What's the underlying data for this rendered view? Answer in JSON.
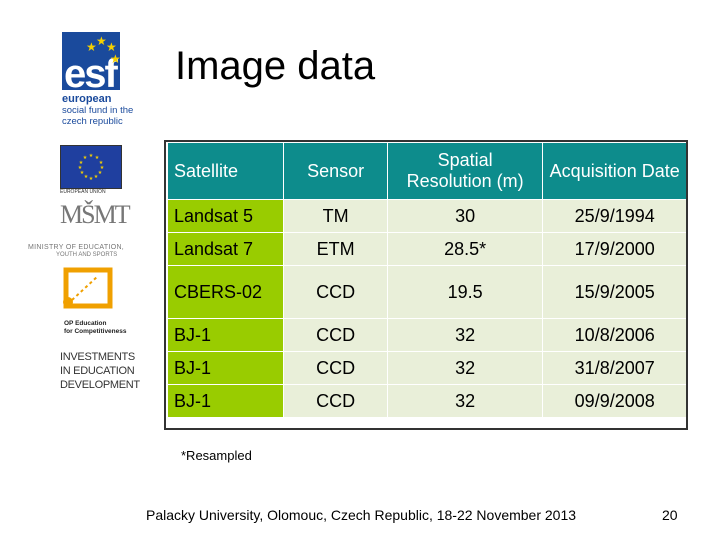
{
  "sidebar": {
    "esf": {
      "letters": "esf",
      "line1": "european",
      "line2": "social fund in the",
      "line3": "czech republic"
    },
    "eu": {
      "caption": "EUROPEAN UNION"
    },
    "msmt": {
      "mono": "MŠMT",
      "line1": "MINISTRY OF EDUCATION,",
      "line2": "YOUTH AND SPORTS"
    },
    "op": {
      "line1": "OP Education",
      "line2": "for Competitiveness"
    },
    "invest": {
      "line1": "INVESTMENTS",
      "line2": "IN EDUCATION",
      "line3": "DEVELOPMENT"
    }
  },
  "slide": {
    "title": "Image data",
    "note": "*Resampled",
    "footer": "Palacky University, Olomouc, Czech Republic, 18-22 November 2013",
    "page_number": "20"
  },
  "table": {
    "headers": [
      "Satellite",
      "Sensor",
      "Spatial Resolution (m)",
      "Acquisition Date"
    ],
    "rows": [
      [
        "Landsat 5",
        "TM",
        "30",
        "25/9/1994"
      ],
      [
        "Landsat 7",
        "ETM",
        "28.5*",
        "17/9/2000"
      ],
      [
        "CBERS-02",
        "CCD",
        "19.5",
        "15/9/2005"
      ],
      [
        "BJ-1",
        "CCD",
        "32",
        "10/8/2006"
      ],
      [
        "BJ-1",
        "CCD",
        "32",
        "31/8/2007"
      ],
      [
        "BJ-1",
        "CCD",
        "32",
        "09/9/2008"
      ]
    ]
  },
  "colors": {
    "header_bg": "#0d8c8c",
    "first_col_bg": "#99cc00",
    "cell_bg": "#e9efd9",
    "esf_blue": "#1a4a9c",
    "eu_star": "#f5d000"
  }
}
